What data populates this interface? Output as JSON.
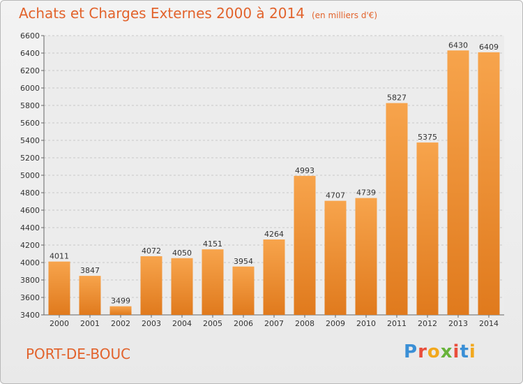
{
  "title": "Achats et Charges Externes 2000 à 2014",
  "subtitle": "(en milliers d'€)",
  "city": "PORT-DE-BOUC",
  "logo": {
    "letters": [
      "P",
      "r",
      "o",
      "x",
      "i",
      "t",
      "i"
    ],
    "colors": [
      "#3a8fd6",
      "#e94e3c",
      "#f2a81d",
      "#67b33a",
      "#e94e3c",
      "#3a8fd6",
      "#f2a81d"
    ]
  },
  "colors": {
    "bar_top": "#f7a44c",
    "bar_bottom": "#e07a1d",
    "accent": "#e2632c"
  },
  "chart_data": {
    "type": "bar",
    "categories": [
      "2000",
      "2001",
      "2002",
      "2003",
      "2004",
      "2005",
      "2006",
      "2007",
      "2008",
      "2009",
      "2010",
      "2011",
      "2012",
      "2013",
      "2014"
    ],
    "values": [
      4011,
      3847,
      3499,
      4072,
      4050,
      4151,
      3954,
      4264,
      4993,
      4707,
      4739,
      5827,
      5375,
      6430,
      6409
    ],
    "ylim": [
      3400,
      6600
    ],
    "yticks": [
      3400,
      3600,
      3800,
      4000,
      4200,
      4400,
      4600,
      4800,
      5000,
      5200,
      5400,
      5600,
      5800,
      6000,
      6200,
      6400,
      6600
    ],
    "grid": true,
    "legend": "none"
  }
}
